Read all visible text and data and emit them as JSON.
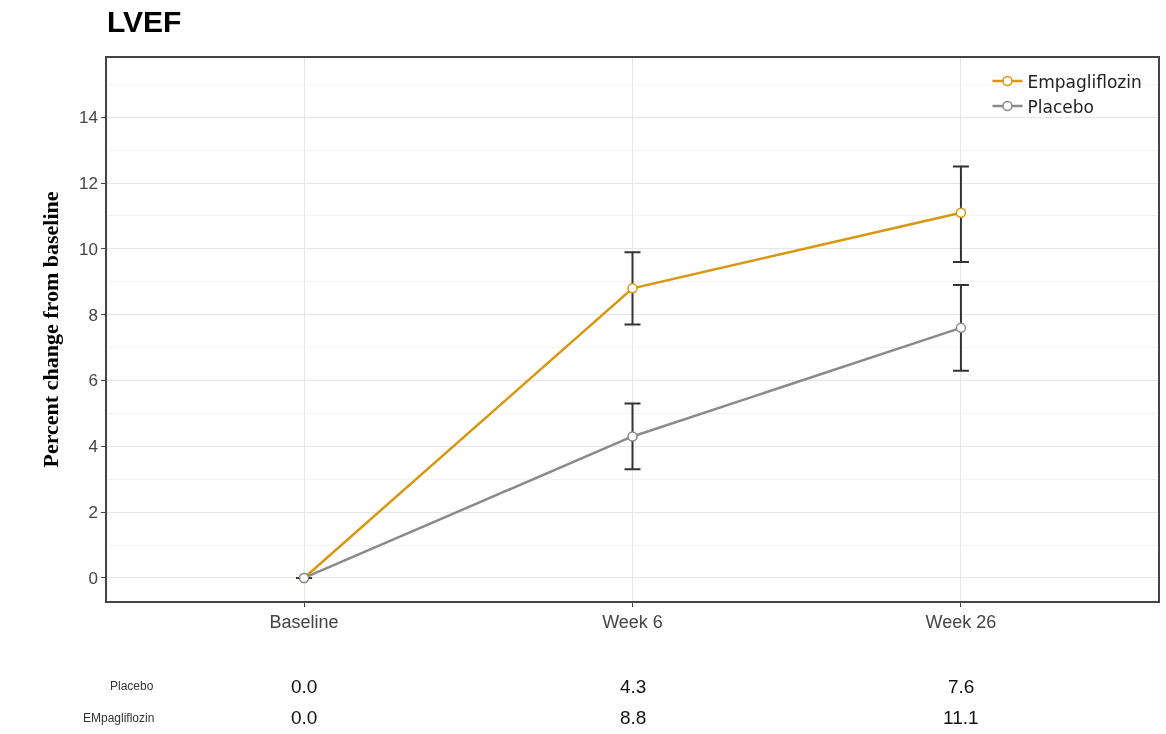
{
  "chart_data": {
    "type": "line",
    "title": "LVEF",
    "ylabel": "Percent change from baseline",
    "categories": [
      "Baseline",
      "Week 6",
      "Week 26"
    ],
    "series": [
      {
        "name": "Empagliflozin",
        "color": "#d9960f",
        "values": [
          0,
          8.8,
          11.1
        ],
        "errors": [
          null,
          [
            7.7,
            9.9
          ],
          [
            9.6,
            12.5
          ]
        ],
        "value_labels": [
          "0.0",
          "8.8",
          "11.1"
        ]
      },
      {
        "name": "Placebo",
        "color": "#8a8a8a",
        "values": [
          0,
          4.3,
          7.6
        ],
        "errors": [
          null,
          [
            3.3,
            5.3
          ],
          [
            6.3,
            8.9
          ]
        ],
        "value_labels": [
          "0.0",
          "4.3",
          "7.6"
        ]
      }
    ],
    "annotations": [
      "Placebo",
      "EMpagliflozin"
    ],
    "ylim": [
      -0.7,
      15.8
    ],
    "yticks": [
      0,
      2,
      4,
      6,
      8,
      10,
      12,
      14
    ],
    "grid": true,
    "legend": "top right",
    "marker": "circle",
    "line_style": "solid"
  }
}
